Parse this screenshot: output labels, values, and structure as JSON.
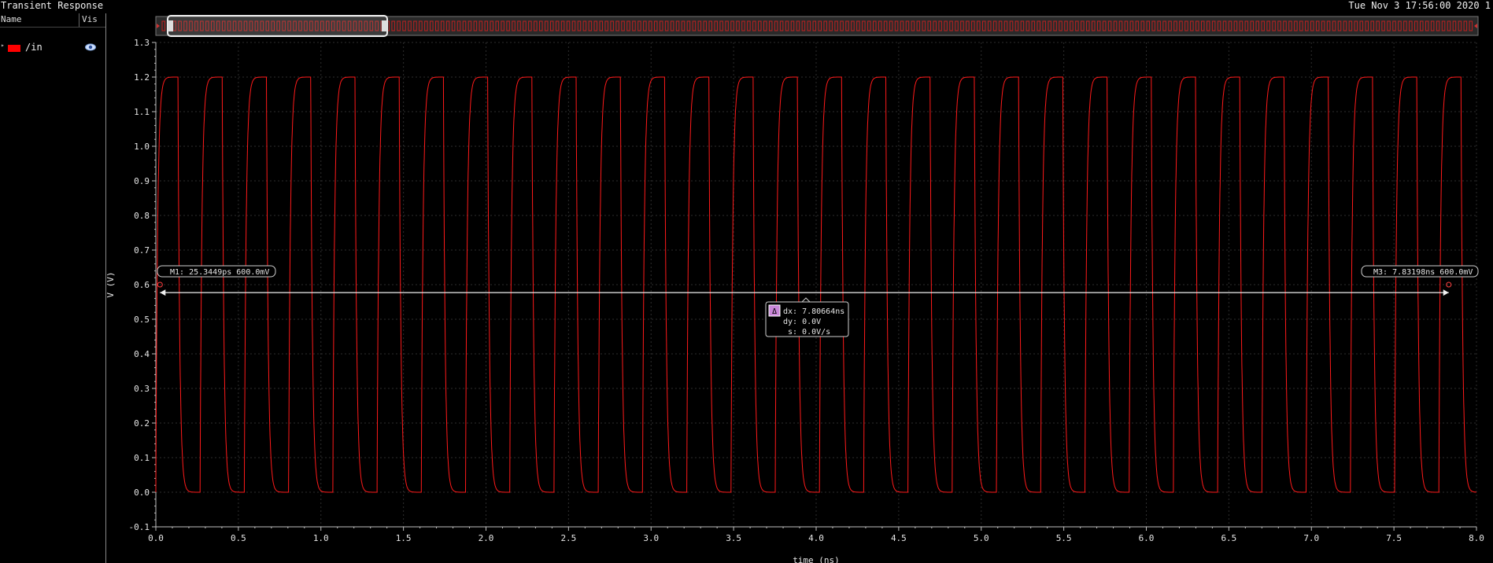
{
  "window": {
    "title": "Transient Response",
    "timestamp": "Tue Nov 3 17:56:00 2020 1"
  },
  "legend": {
    "columns": {
      "name": "Name",
      "vis": "Vis"
    },
    "signals": [
      {
        "name": "/in",
        "color": "#ff0000",
        "visible_icon": "eye-icon"
      }
    ]
  },
  "axes": {
    "ylabel": "V (V)",
    "xlabel": "time (ns)"
  },
  "markers": {
    "m1": {
      "label": "M1: 25.3449ps 600.0mV",
      "x_ns": 0.0253449,
      "y_v": 0.6
    },
    "m3": {
      "label": "M3: 7.83198ns 600.0mV",
      "x_ns": 7.83198,
      "y_v": 0.6
    },
    "delta": {
      "icon": "delta-icon",
      "symbol": "Δ",
      "dx": "dx: 7.80664ns",
      "dy": "dy: 0.0V",
      "s": "s: 0.0V/s"
    }
  },
  "colors": {
    "trace": "#ff1a1a",
    "grid": "#2e2e2e",
    "axis": "#bfbfbf",
    "text": "#e6e6e6"
  },
  "chart_data": {
    "type": "line",
    "title": "Transient Response",
    "xlabel": "time (ns)",
    "ylabel": "V (V)",
    "xlim": [
      0,
      8.0
    ],
    "ylim": [
      -0.1,
      1.3
    ],
    "x_ticks": [
      "0.0",
      "0.5",
      "1.0",
      "1.5",
      "2.0",
      "2.5",
      "3.0",
      "3.5",
      "4.0",
      "4.5",
      "5.0",
      "5.5",
      "6.0",
      "6.5",
      "7.0",
      "7.5",
      "8.0"
    ],
    "y_ticks": [
      "-0.1",
      "0.0",
      "0.1",
      "0.2",
      "0.3",
      "0.4",
      "0.5",
      "0.6",
      "0.7",
      "0.8",
      "0.9",
      "1.0",
      "1.1",
      "1.2",
      "1.3"
    ],
    "grid": true,
    "series": [
      {
        "name": "/in",
        "color": "#ff0000",
        "waveform": "square",
        "period_ns": 0.268,
        "high_v": 1.2,
        "low_v": 0.0,
        "start_ns": 0.0
      }
    ]
  }
}
